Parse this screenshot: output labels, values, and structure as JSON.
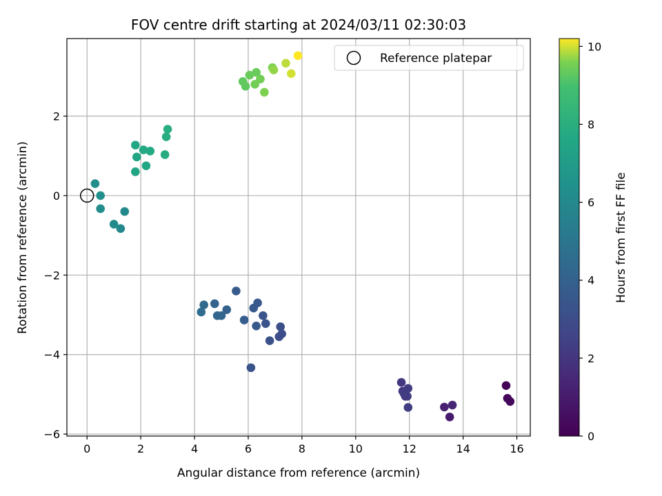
{
  "chart_data": {
    "type": "scatter",
    "title": "FOV centre drift starting at 2024/03/11 02:30:03",
    "xlabel": "Angular distance from reference (arcmin)",
    "ylabel": "Rotation from reference (arcmin)",
    "xlim": [
      -0.75,
      16.5
    ],
    "ylim": [
      -6.05,
      3.95
    ],
    "xticks": [
      0,
      2,
      4,
      6,
      8,
      10,
      12,
      14,
      16
    ],
    "yticks": [
      -6,
      -4,
      -2,
      0,
      2
    ],
    "xtick_labels": [
      "0",
      "2",
      "4",
      "6",
      "8",
      "10",
      "12",
      "14",
      "16"
    ],
    "ytick_labels": [
      "−6",
      "−4",
      "−2",
      "0",
      "2"
    ],
    "grid": true,
    "legend": {
      "position": "top-right",
      "entries": [
        {
          "label": "Reference platepar",
          "marker": "open-circle"
        }
      ]
    },
    "reference_point": {
      "x": 0,
      "y": 0
    },
    "colorbar": {
      "label": "Hours from first FF file",
      "colormap": "viridis",
      "range": [
        0,
        10.2
      ],
      "ticks": [
        0,
        2,
        4,
        6,
        8,
        10
      ],
      "tick_labels": [
        "0",
        "2",
        "4",
        "6",
        "8",
        "10"
      ]
    },
    "points": [
      {
        "x": 15.6,
        "y": -4.78,
        "hours": 0.1
      },
      {
        "x": 15.65,
        "y": -5.1,
        "hours": 0.2
      },
      {
        "x": 15.75,
        "y": -5.18,
        "hours": 0.3
      },
      {
        "x": 13.5,
        "y": -5.57,
        "hours": 1.0
      },
      {
        "x": 13.3,
        "y": -5.32,
        "hours": 1.2
      },
      {
        "x": 13.6,
        "y": -5.27,
        "hours": 1.4
      },
      {
        "x": 11.7,
        "y": -4.7,
        "hours": 2.0
      },
      {
        "x": 11.75,
        "y": -4.92,
        "hours": 2.1
      },
      {
        "x": 11.85,
        "y": -5.05,
        "hours": 2.1
      },
      {
        "x": 11.95,
        "y": -4.85,
        "hours": 2.2
      },
      {
        "x": 11.92,
        "y": -5.05,
        "hours": 2.2
      },
      {
        "x": 11.95,
        "y": -5.33,
        "hours": 2.3
      },
      {
        "x": 11.8,
        "y": -4.98,
        "hours": 2.3
      },
      {
        "x": 6.1,
        "y": -4.33,
        "hours": 3.3
      },
      {
        "x": 7.15,
        "y": -3.55,
        "hours": 3.0
      },
      {
        "x": 7.25,
        "y": -3.48,
        "hours": 3.0
      },
      {
        "x": 7.2,
        "y": -3.3,
        "hours": 3.1
      },
      {
        "x": 6.8,
        "y": -3.65,
        "hours": 3.2
      },
      {
        "x": 6.65,
        "y": -3.22,
        "hours": 3.3
      },
      {
        "x": 6.55,
        "y": -3.02,
        "hours": 3.4
      },
      {
        "x": 6.35,
        "y": -2.7,
        "hours": 3.5
      },
      {
        "x": 6.2,
        "y": -2.83,
        "hours": 3.6
      },
      {
        "x": 6.3,
        "y": -3.28,
        "hours": 3.6
      },
      {
        "x": 5.55,
        "y": -2.4,
        "hours": 3.7
      },
      {
        "x": 5.85,
        "y": -3.13,
        "hours": 3.8
      },
      {
        "x": 5.2,
        "y": -2.87,
        "hours": 4.0
      },
      {
        "x": 4.75,
        "y": -2.72,
        "hours": 4.1
      },
      {
        "x": 4.85,
        "y": -3.02,
        "hours": 4.2
      },
      {
        "x": 5.0,
        "y": -3.02,
        "hours": 4.2
      },
      {
        "x": 4.35,
        "y": -2.75,
        "hours": 4.4
      },
      {
        "x": 4.25,
        "y": -2.93,
        "hours": 4.5
      },
      {
        "x": 1.4,
        "y": -0.4,
        "hours": 6.0
      },
      {
        "x": 1.25,
        "y": -0.83,
        "hours": 6.0
      },
      {
        "x": 1.0,
        "y": -0.72,
        "hours": 6.1
      },
      {
        "x": 0.5,
        "y": -0.33,
        "hours": 6.2
      },
      {
        "x": 0.5,
        "y": 0.0,
        "hours": 6.3
      },
      {
        "x": 0.3,
        "y": 0.3,
        "hours": 6.3
      },
      {
        "x": 1.8,
        "y": 0.6,
        "hours": 7.5
      },
      {
        "x": 1.85,
        "y": 0.97,
        "hours": 7.5
      },
      {
        "x": 2.2,
        "y": 0.75,
        "hours": 7.6
      },
      {
        "x": 1.8,
        "y": 1.27,
        "hours": 7.6
      },
      {
        "x": 2.1,
        "y": 1.15,
        "hours": 7.7
      },
      {
        "x": 2.35,
        "y": 1.12,
        "hours": 7.7
      },
      {
        "x": 2.9,
        "y": 1.03,
        "hours": 7.8
      },
      {
        "x": 2.95,
        "y": 1.48,
        "hours": 7.9
      },
      {
        "x": 3.0,
        "y": 1.67,
        "hours": 8.0
      },
      {
        "x": 5.8,
        "y": 2.87,
        "hours": 9.3
      },
      {
        "x": 5.9,
        "y": 2.75,
        "hours": 9.3
      },
      {
        "x": 6.05,
        "y": 3.03,
        "hours": 9.4
      },
      {
        "x": 6.3,
        "y": 3.1,
        "hours": 9.4
      },
      {
        "x": 6.25,
        "y": 2.8,
        "hours": 9.5
      },
      {
        "x": 6.45,
        "y": 2.93,
        "hours": 9.5
      },
      {
        "x": 6.6,
        "y": 2.6,
        "hours": 9.6
      },
      {
        "x": 6.9,
        "y": 3.22,
        "hours": 9.6
      },
      {
        "x": 6.95,
        "y": 3.16,
        "hours": 9.7
      },
      {
        "x": 7.4,
        "y": 3.33,
        "hours": 9.9
      },
      {
        "x": 7.6,
        "y": 3.07,
        "hours": 10.0
      },
      {
        "x": 7.85,
        "y": 3.52,
        "hours": 10.2
      }
    ]
  }
}
